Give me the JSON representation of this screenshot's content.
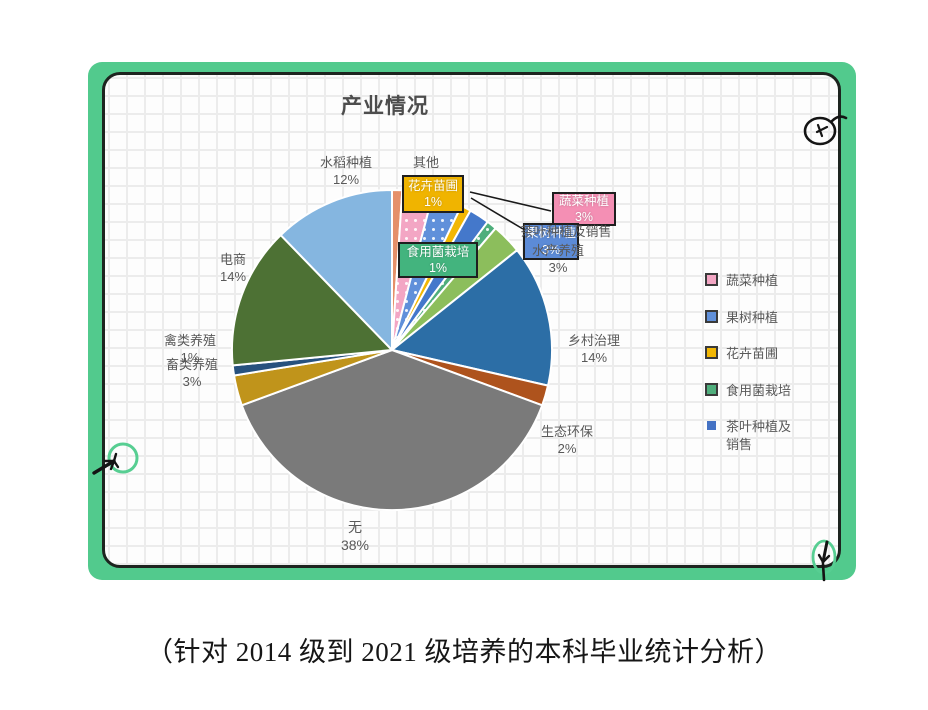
{
  "chart": {
    "title": "产业情况"
  },
  "chart_data": {
    "type": "pie",
    "title": "产业情况",
    "start_angle_deg": 0,
    "direction": "clockwise",
    "unit": "percent",
    "series": [
      {
        "name": "其他",
        "value": 1,
        "color": "#E5906A"
      },
      {
        "name": "蔬菜种植",
        "value": 3,
        "color": "#F3A6C4",
        "pattern": "dots",
        "highlighted": true
      },
      {
        "name": "果树种植",
        "value": 3,
        "color": "#6090DA",
        "pattern": "dots",
        "highlighted": true
      },
      {
        "name": "花卉苗圃",
        "value": 1,
        "color": "#F2B705",
        "highlighted": true
      },
      {
        "name": "茶叶种植及销售",
        "value": 2,
        "color": "#4478CB",
        "highlighted": true
      },
      {
        "name": "食用菌栽培",
        "value": 1,
        "color": "#4FAE7C",
        "pattern": "dots",
        "highlighted": true
      },
      {
        "name": "水产养殖",
        "value": 3,
        "color": "#8CBE5C"
      },
      {
        "name": "乡村治理",
        "value": 14,
        "color": "#2C6EA6"
      },
      {
        "name": "生态环保",
        "value": 2,
        "color": "#AE531D"
      },
      {
        "name": "无",
        "value": 38,
        "color": "#7A7A7A"
      },
      {
        "name": "畜类养殖",
        "value": 3,
        "color": "#C0941B"
      },
      {
        "name": "禽类养殖",
        "value": 1,
        "color": "#27517E"
      },
      {
        "name": "电商",
        "value": 14,
        "color": "#4D7134"
      },
      {
        "name": "水稻种植",
        "value": 12,
        "color": "#85B6E0"
      }
    ],
    "legend_position": "right",
    "legend_entries": [
      "蔬菜种植",
      "果树种植",
      "花卉苗圃",
      "食用菌栽培",
      "茶叶种植及销售"
    ]
  },
  "labels": {
    "rice": {
      "t": "水稻种植",
      "p": "12%"
    },
    "other": {
      "t": "其他",
      "p": "1%"
    },
    "ecommerce": {
      "t": "电商",
      "p": "14%"
    },
    "poultry": {
      "t": "禽类养殖",
      "p": "1%"
    },
    "livestock": {
      "t": "畜类养殖",
      "p": "3%"
    },
    "village": {
      "t": "乡村治理",
      "p": "14%"
    },
    "ecology": {
      "t": "生态环保",
      "p": "2%"
    },
    "none": {
      "t": "无",
      "p": "38%"
    },
    "tea": {
      "t": "茶叶种植及销售",
      "p": ""
    },
    "aquaculture": {
      "t": "水产养殖",
      "p": "3%"
    }
  },
  "callouts": {
    "flower": {
      "t": "花卉苗圃",
      "p": "1%",
      "bg": "#F0B400"
    },
    "vegetable": {
      "t": "蔬菜种植",
      "p": "3%",
      "bg": "#F48FB4"
    },
    "fruit": {
      "t": "果树种植",
      "p": "3%",
      "bg": "#5C8BD7"
    },
    "mushroom": {
      "t": "食用菌栽培",
      "p": "1%",
      "bg": "#43B47E"
    }
  },
  "legend": {
    "items": [
      {
        "label": "蔬菜种植",
        "color": "#F3A6C4"
      },
      {
        "label": "果树种植",
        "color": "#6090DA"
      },
      {
        "label": "花卉苗圃",
        "color": "#F2B705"
      },
      {
        "label": "食用菌栽培",
        "color": "#4FAE7C"
      },
      {
        "label": "茶叶种植及\n销售",
        "color": "#4472C4"
      }
    ]
  },
  "caption": "（针对 2014 级到 2021 级培养的本科毕业统计分析）"
}
